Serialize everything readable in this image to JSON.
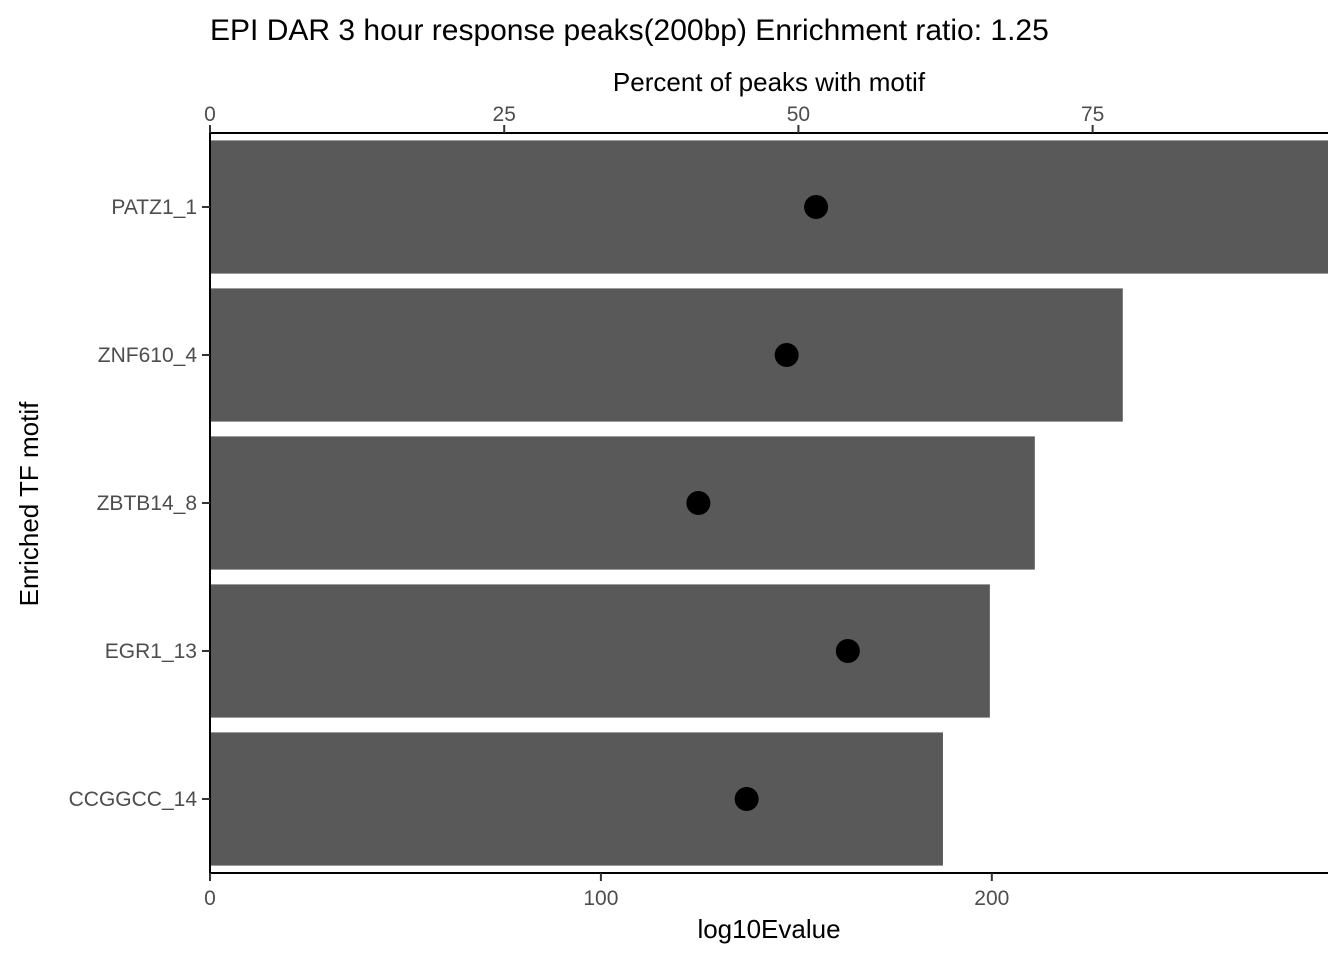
{
  "chart_data": {
    "type": "bar",
    "title": "EPI DAR 3 hour response peaks(200bp) Enrichment ratio: 1.25",
    "ylabel": "Enriched TF motif",
    "xlabel_bottom": "log10Evalue",
    "xlabel_top": "Percent of peaks with motif",
    "bottom_axis": {
      "range": [
        0,
        286
      ],
      "ticks": [
        0,
        100,
        200
      ],
      "tick_labels": [
        "0",
        "100",
        "200"
      ]
    },
    "top_axis": {
      "range": [
        0,
        95
      ],
      "ticks": [
        0,
        25,
        50,
        75
      ],
      "tick_labels": [
        "0",
        "25",
        "50",
        "75"
      ]
    },
    "categories": [
      "PATZ1_1",
      "ZNF610_4",
      "ZBTB14_8",
      "EGR1_13",
      "CCGGCC_14"
    ],
    "series": [
      {
        "name": "log10Evalue",
        "mark": "bar",
        "axis": "bottom",
        "color": "#595959",
        "values": [
          286,
          233.5,
          211,
          199.5,
          187.5
        ]
      },
      {
        "name": "Percent of peaks with motif",
        "mark": "point",
        "axis": "top",
        "color": "#000000",
        "values": [
          51.5,
          49,
          41.5,
          54.2,
          45.6
        ]
      }
    ]
  }
}
